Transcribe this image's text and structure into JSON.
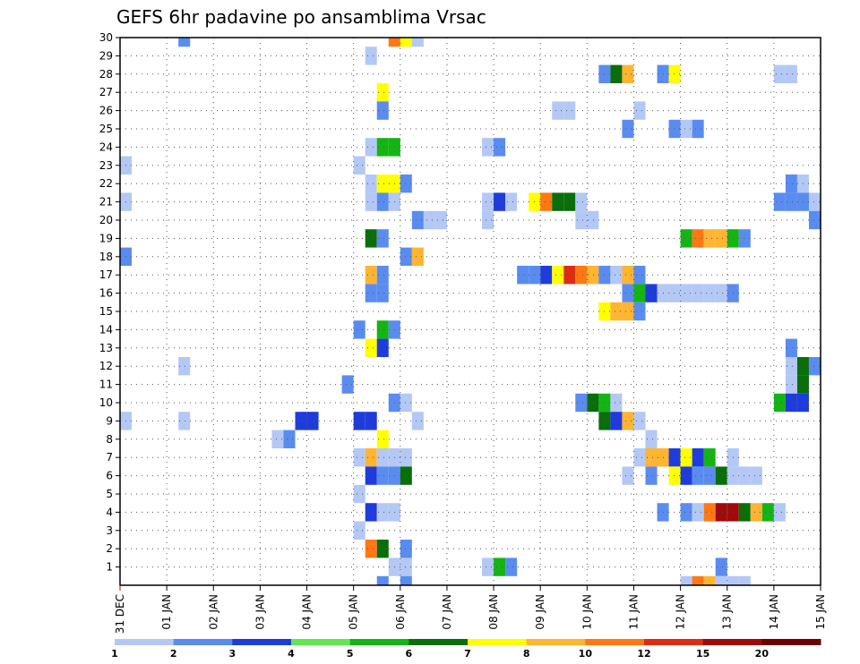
{
  "chart_data": {
    "type": "heatmap",
    "title": "GEFS 6hr padavine po ansamblima Vrsac",
    "xlabel": "",
    "ylabel": "",
    "x_tick_labels": [
      "31 DEC",
      "01 JAN",
      "02 JAN",
      "03 JAN",
      "04 JAN",
      "05 JAN",
      "06 JAN",
      "07 JAN",
      "08 JAN",
      "09 JAN",
      "10 JAN",
      "11 JAN",
      "12 JAN",
      "13 JAN",
      "14 JAN",
      "15 JAN"
    ],
    "y_tick_labels": [
      "1",
      "2",
      "3",
      "4",
      "5",
      "6",
      "7",
      "8",
      "9",
      "10",
      "11",
      "12",
      "13",
      "14",
      "15",
      "16",
      "17",
      "18",
      "19",
      "20",
      "21",
      "22",
      "23",
      "24",
      "25",
      "26",
      "27",
      "28",
      "29",
      "30"
    ],
    "x_range_days": [
      0,
      15
    ],
    "y_range": [
      0,
      30
    ],
    "grid": true,
    "colorbar": {
      "labels": [
        "1",
        "2",
        "3",
        "4",
        "5",
        "6",
        "7",
        "8",
        "10",
        "12",
        "15",
        "20"
      ],
      "colors": [
        "#b4c8f5",
        "#5a8cf0",
        "#1e3cdc",
        "#64e650",
        "#14b414",
        "#0a6e0a",
        "#ffff00",
        "#ffb432",
        "#ff7814",
        "#dc2d14",
        "#a00a0a",
        "#6e0000"
      ]
    },
    "cells": [
      [
        30,
        1.25,
        2
      ],
      [
        30,
        5.75,
        10
      ],
      [
        30,
        6.0,
        7
      ],
      [
        30,
        6.25,
        1
      ],
      [
        29,
        5.25,
        1
      ],
      [
        28,
        10.25,
        2
      ],
      [
        28,
        10.5,
        6
      ],
      [
        28,
        10.75,
        8
      ],
      [
        28,
        11.5,
        2
      ],
      [
        28,
        11.75,
        7
      ],
      [
        28,
        14.0,
        1
      ],
      [
        28,
        14.25,
        1
      ],
      [
        27,
        5.5,
        7
      ],
      [
        26,
        5.5,
        2
      ],
      [
        26,
        9.25,
        1
      ],
      [
        26,
        9.5,
        1
      ],
      [
        26,
        11.0,
        1
      ],
      [
        26,
        15.0,
        2
      ],
      [
        25,
        10.75,
        2
      ],
      [
        25,
        11.75,
        2
      ],
      [
        25,
        12.0,
        1
      ],
      [
        25,
        12.25,
        2
      ],
      [
        24,
        5.25,
        1
      ],
      [
        24,
        5.5,
        5
      ],
      [
        24,
        5.75,
        5
      ],
      [
        24,
        7.75,
        1
      ],
      [
        24,
        8.0,
        2
      ],
      [
        23,
        0.0,
        1
      ],
      [
        23,
        5.0,
        1
      ],
      [
        22,
        5.25,
        1
      ],
      [
        22,
        5.5,
        7
      ],
      [
        22,
        5.75,
        7
      ],
      [
        22,
        6.0,
        2
      ],
      [
        22,
        14.25,
        2
      ],
      [
        22,
        14.5,
        1
      ],
      [
        21,
        0.0,
        1
      ],
      [
        21,
        5.25,
        1
      ],
      [
        21,
        5.5,
        2
      ],
      [
        21,
        5.75,
        1
      ],
      [
        21,
        7.75,
        1
      ],
      [
        21,
        8.0,
        3
      ],
      [
        21,
        8.25,
        1
      ],
      [
        21,
        8.75,
        7
      ],
      [
        21,
        9.0,
        10
      ],
      [
        21,
        9.25,
        6
      ],
      [
        21,
        9.5,
        6
      ],
      [
        21,
        9.75,
        1
      ],
      [
        21,
        14.0,
        2
      ],
      [
        21,
        14.25,
        2
      ],
      [
        21,
        14.5,
        2
      ],
      [
        21,
        14.75,
        1
      ],
      [
        20,
        6.25,
        2
      ],
      [
        20,
        6.5,
        1
      ],
      [
        20,
        6.75,
        1
      ],
      [
        20,
        7.75,
        1
      ],
      [
        20,
        9.75,
        1
      ],
      [
        20,
        10.0,
        1
      ],
      [
        20,
        14.75,
        2
      ],
      [
        19,
        5.25,
        6
      ],
      [
        19,
        5.5,
        2
      ],
      [
        19,
        12.0,
        5
      ],
      [
        19,
        12.25,
        10
      ],
      [
        19,
        12.5,
        8
      ],
      [
        19,
        12.75,
        8
      ],
      [
        19,
        13.0,
        5
      ],
      [
        19,
        13.25,
        2
      ],
      [
        18,
        0.0,
        2
      ],
      [
        18,
        6.0,
        2
      ],
      [
        18,
        6.25,
        8
      ],
      [
        17,
        5.25,
        8
      ],
      [
        17,
        5.5,
        2
      ],
      [
        17,
        8.5,
        2
      ],
      [
        17,
        8.75,
        2
      ],
      [
        17,
        9.0,
        3
      ],
      [
        17,
        9.25,
        7
      ],
      [
        17,
        9.5,
        12
      ],
      [
        17,
        9.75,
        10
      ],
      [
        17,
        10.0,
        8
      ],
      [
        17,
        10.25,
        2
      ],
      [
        17,
        10.5,
        1
      ],
      [
        17,
        10.75,
        8
      ],
      [
        17,
        11.0,
        2
      ],
      [
        16,
        5.25,
        2
      ],
      [
        16,
        5.5,
        2
      ],
      [
        16,
        10.75,
        2
      ],
      [
        16,
        11.0,
        5
      ],
      [
        16,
        11.25,
        3
      ],
      [
        16,
        11.5,
        1
      ],
      [
        16,
        11.75,
        1
      ],
      [
        16,
        12.0,
        1
      ],
      [
        16,
        12.25,
        1
      ],
      [
        16,
        12.5,
        1
      ],
      [
        16,
        12.75,
        1
      ],
      [
        16,
        13.0,
        2
      ],
      [
        15,
        10.25,
        7
      ],
      [
        15,
        10.5,
        8
      ],
      [
        15,
        10.75,
        8
      ],
      [
        15,
        11.0,
        2
      ],
      [
        14,
        5.0,
        2
      ],
      [
        14,
        5.5,
        5
      ],
      [
        14,
        5.75,
        2
      ],
      [
        13,
        5.25,
        7
      ],
      [
        13,
        5.5,
        3
      ],
      [
        13,
        14.25,
        2
      ],
      [
        12,
        1.25,
        1
      ],
      [
        12,
        14.25,
        1
      ],
      [
        12,
        14.5,
        6
      ],
      [
        12,
        14.75,
        2
      ],
      [
        11,
        4.75,
        2
      ],
      [
        11,
        14.25,
        1
      ],
      [
        11,
        14.5,
        6
      ],
      [
        10,
        5.75,
        2
      ],
      [
        10,
        6.0,
        1
      ],
      [
        10,
        9.75,
        2
      ],
      [
        10,
        10.0,
        6
      ],
      [
        10,
        10.25,
        5
      ],
      [
        10,
        10.5,
        1
      ],
      [
        10,
        14.0,
        5
      ],
      [
        10,
        14.25,
        3
      ],
      [
        10,
        14.5,
        3
      ],
      [
        9,
        0.0,
        1
      ],
      [
        9,
        1.25,
        1
      ],
      [
        9,
        3.75,
        3
      ],
      [
        9,
        4.0,
        3
      ],
      [
        9,
        5.0,
        3
      ],
      [
        9,
        5.25,
        3
      ],
      [
        9,
        6.25,
        1
      ],
      [
        9,
        10.25,
        6
      ],
      [
        9,
        10.5,
        3
      ],
      [
        9,
        10.75,
        8
      ],
      [
        9,
        11.0,
        1
      ],
      [
        8,
        5.5,
        7
      ],
      [
        8,
        3.25,
        1
      ],
      [
        8,
        3.5,
        2
      ],
      [
        8,
        11.25,
        1
      ],
      [
        7,
        5.0,
        1
      ],
      [
        7,
        5.25,
        8
      ],
      [
        7,
        5.5,
        1
      ],
      [
        7,
        5.75,
        1
      ],
      [
        7,
        6.0,
        1
      ],
      [
        7,
        11.0,
        1
      ],
      [
        7,
        11.25,
        8
      ],
      [
        7,
        11.5,
        8
      ],
      [
        7,
        11.75,
        3
      ],
      [
        7,
        12.0,
        7
      ],
      [
        7,
        12.25,
        3
      ],
      [
        7,
        12.5,
        5
      ],
      [
        7,
        13.0,
        1
      ],
      [
        6,
        5.25,
        3
      ],
      [
        6,
        5.5,
        2
      ],
      [
        6,
        5.75,
        2
      ],
      [
        6,
        6.0,
        6
      ],
      [
        6,
        10.75,
        1
      ],
      [
        6,
        11.25,
        2
      ],
      [
        6,
        11.75,
        7
      ],
      [
        6,
        12.0,
        3
      ],
      [
        6,
        12.25,
        2
      ],
      [
        6,
        12.5,
        2
      ],
      [
        6,
        12.75,
        6
      ],
      [
        6,
        13.0,
        1
      ],
      [
        6,
        13.25,
        1
      ],
      [
        6,
        13.5,
        1
      ],
      [
        5,
        5.0,
        1
      ],
      [
        4,
        5.25,
        3
      ],
      [
        4,
        5.5,
        1
      ],
      [
        4,
        5.75,
        1
      ],
      [
        4,
        11.5,
        2
      ],
      [
        4,
        12.0,
        2
      ],
      [
        4,
        12.25,
        1
      ],
      [
        4,
        12.5,
        10
      ],
      [
        4,
        12.75,
        15
      ],
      [
        4,
        13.0,
        15
      ],
      [
        4,
        13.25,
        6
      ],
      [
        4,
        13.5,
        8
      ],
      [
        4,
        13.75,
        5
      ],
      [
        4,
        14.0,
        1
      ],
      [
        3,
        5.0,
        1
      ],
      [
        2,
        5.25,
        10
      ],
      [
        2,
        5.5,
        6
      ],
      [
        2,
        6.0,
        2
      ],
      [
        1,
        5.75,
        1
      ],
      [
        1,
        6.0,
        1
      ],
      [
        1,
        7.75,
        1
      ],
      [
        1,
        8.0,
        5
      ],
      [
        1,
        8.25,
        2
      ],
      [
        1,
        12.75,
        2
      ],
      [
        0,
        5.5,
        2
      ],
      [
        0,
        6.0,
        2
      ],
      [
        0,
        12.0,
        1
      ],
      [
        0,
        12.25,
        10
      ],
      [
        0,
        12.5,
        8
      ],
      [
        0,
        12.75,
        1
      ],
      [
        0,
        13.0,
        1
      ],
      [
        0,
        13.25,
        1
      ],
      [
        -1,
        5.25,
        5
      ],
      [
        -1,
        5.5,
        6
      ],
      [
        -1,
        5.75,
        2
      ],
      [
        -1,
        9.5,
        7
      ],
      [
        -1,
        9.75,
        1
      ],
      [
        -1,
        10.0,
        1
      ],
      [
        -1,
        11.0,
        1
      ]
    ]
  }
}
